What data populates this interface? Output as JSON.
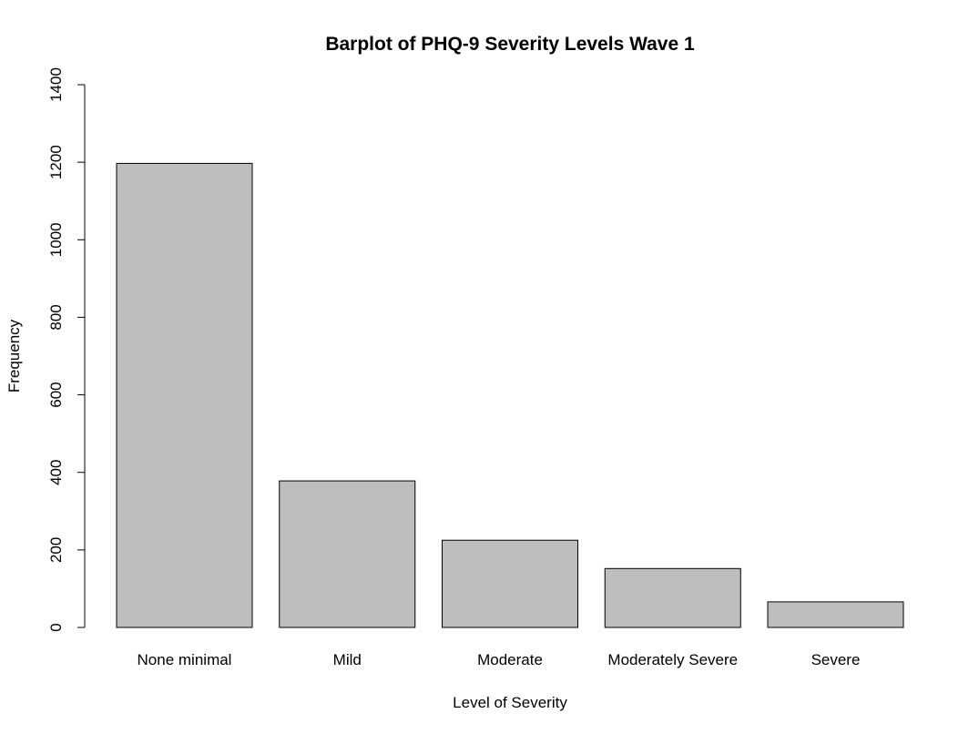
{
  "chart_data": {
    "type": "bar",
    "title": "Barplot of PHQ-9 Severity Levels Wave 1",
    "xlabel": "Level of Severity",
    "ylabel": "Frequency",
    "categories": [
      "None minimal",
      "Mild",
      "Moderate",
      "Moderately Severe",
      "Severe"
    ],
    "values": [
      1197,
      378,
      225,
      152,
      66
    ],
    "ylim": [
      0,
      1400
    ],
    "yticks": [
      "0",
      "200",
      "400",
      "600",
      "800",
      "1000",
      "1200",
      "1400"
    ],
    "bar_color": "#bebebe",
    "grid": false,
    "legend": "none"
  }
}
